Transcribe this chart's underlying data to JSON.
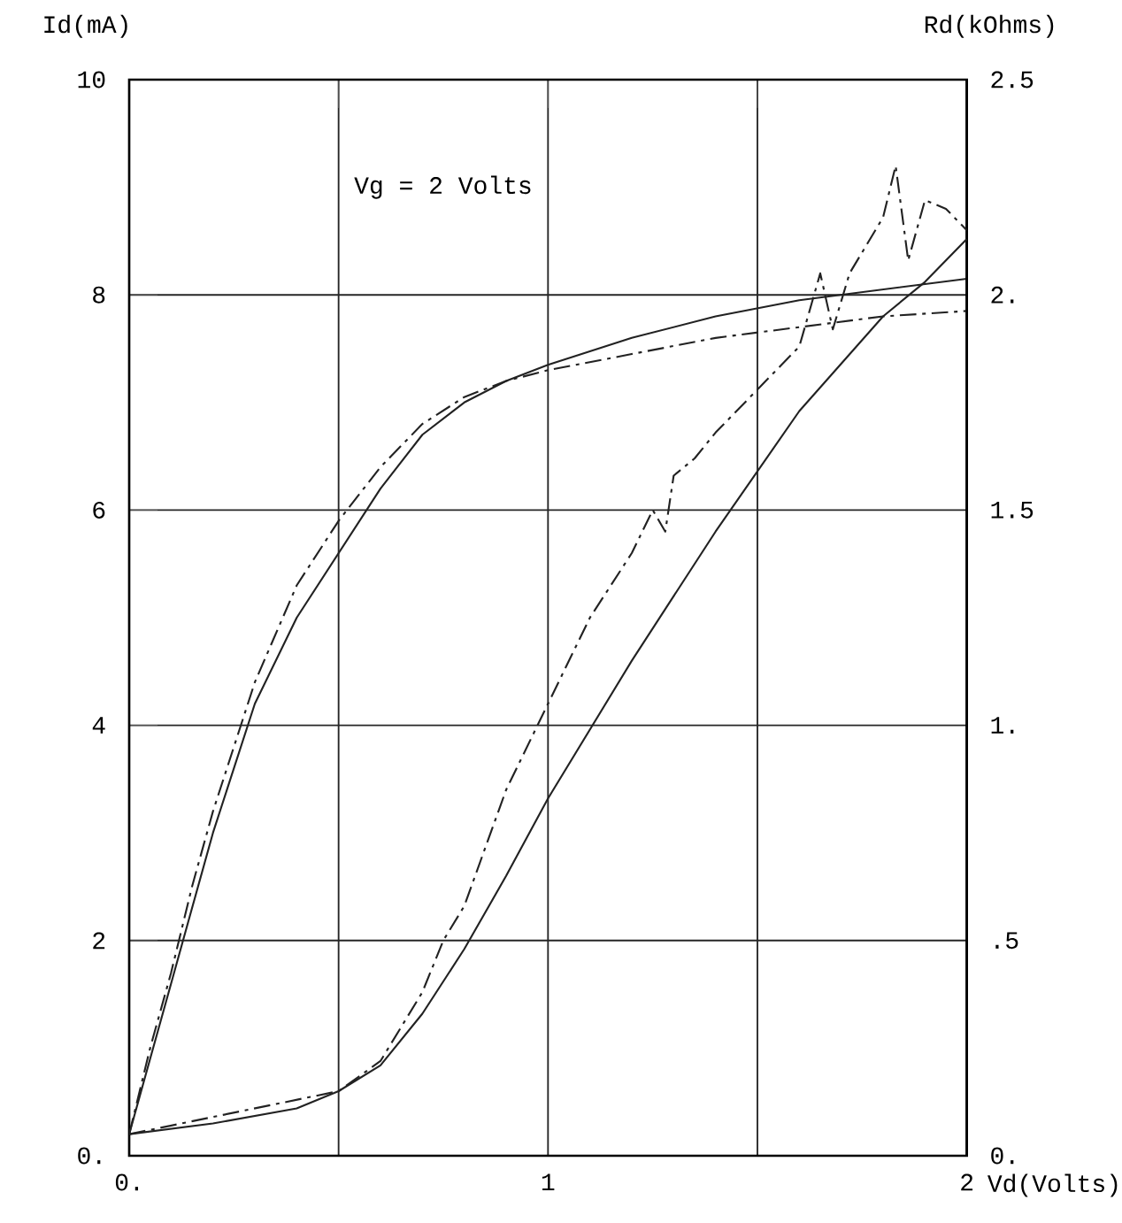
{
  "chart_data": {
    "type": "line",
    "xlabel": "Vd(Volts)",
    "ylabel": "Id(mA)",
    "y2label": "Rd(kOhms)",
    "annotations": [
      "Vg = 2 Volts"
    ],
    "xlim": [
      0,
      2
    ],
    "ylim": [
      0,
      10
    ],
    "y2lim": [
      0,
      2.5
    ],
    "xticks": [
      {
        "value": 0,
        "label": "0."
      },
      {
        "value": 0.5,
        "label": null
      },
      1,
      {
        "value": 1.5,
        "label": null
      },
      2
    ],
    "yticks": [
      {
        "value": 0,
        "label": "0."
      },
      2,
      4,
      6,
      8,
      10
    ],
    "y2ticks": [
      {
        "value": 0,
        "label": "0."
      },
      {
        "value": 0.5,
        "label": ".5"
      },
      {
        "value": 1,
        "label": "1."
      },
      1.5,
      {
        "value": 2,
        "label": "2."
      },
      2.5
    ],
    "grid": true,
    "series": [
      {
        "color": "#222222",
        "line_style": "solid",
        "x": [
          0,
          0.05,
          0.1,
          0.15,
          0.2,
          0.3,
          0.4,
          0.5,
          0.6,
          0.7,
          0.8,
          0.9,
          1.0,
          1.2,
          1.4,
          1.6,
          1.8,
          2.0
        ],
        "values": [
          0.2,
          0.9,
          1.6,
          2.3,
          3.0,
          4.2,
          5.0,
          5.6,
          6.2,
          6.7,
          7.0,
          7.2,
          7.35,
          7.6,
          7.8,
          7.95,
          8.05,
          8.15
        ]
      },
      {
        "color": "#222222",
        "line_style": "dashdot",
        "x": [
          0,
          0.05,
          0.1,
          0.15,
          0.2,
          0.3,
          0.4,
          0.5,
          0.6,
          0.7,
          0.8,
          0.9,
          1.0,
          1.2,
          1.4,
          1.6,
          1.8,
          2.0
        ],
        "values": [
          0.2,
          1.0,
          1.7,
          2.5,
          3.2,
          4.4,
          5.3,
          5.9,
          6.4,
          6.8,
          7.05,
          7.2,
          7.3,
          7.45,
          7.6,
          7.7,
          7.8,
          7.85
        ]
      },
      {
        "color": "#222222",
        "line_style": "solid",
        "axis": "y2",
        "x": [
          0,
          0.2,
          0.4,
          0.5,
          0.6,
          0.7,
          0.8,
          0.9,
          1.0,
          1.2,
          1.4,
          1.6,
          1.8,
          1.9,
          2.0
        ],
        "values": [
          0.05,
          0.075,
          0.11,
          0.15,
          0.21,
          0.33,
          0.48,
          0.65,
          0.83,
          1.15,
          1.45,
          1.73,
          1.95,
          2.03,
          2.13
        ]
      },
      {
        "color": "#222222",
        "line_style": "dashdot",
        "axis": "y2",
        "x": [
          0,
          0.5,
          0.6,
          0.7,
          0.75,
          0.8,
          0.9,
          1.0,
          1.05,
          1.1,
          1.2,
          1.25,
          1.28,
          1.3,
          1.35,
          1.4,
          1.5,
          1.6,
          1.65,
          1.68,
          1.72,
          1.8,
          1.83,
          1.86,
          1.9,
          1.95,
          2.0
        ],
        "values": [
          0.05,
          0.15,
          0.22,
          0.38,
          0.5,
          0.58,
          0.85,
          1.05,
          1.15,
          1.25,
          1.4,
          1.5,
          1.45,
          1.58,
          1.62,
          1.68,
          1.78,
          1.88,
          2.05,
          1.92,
          2.05,
          2.18,
          2.3,
          2.08,
          2.22,
          2.2,
          2.15
        ]
      }
    ]
  }
}
